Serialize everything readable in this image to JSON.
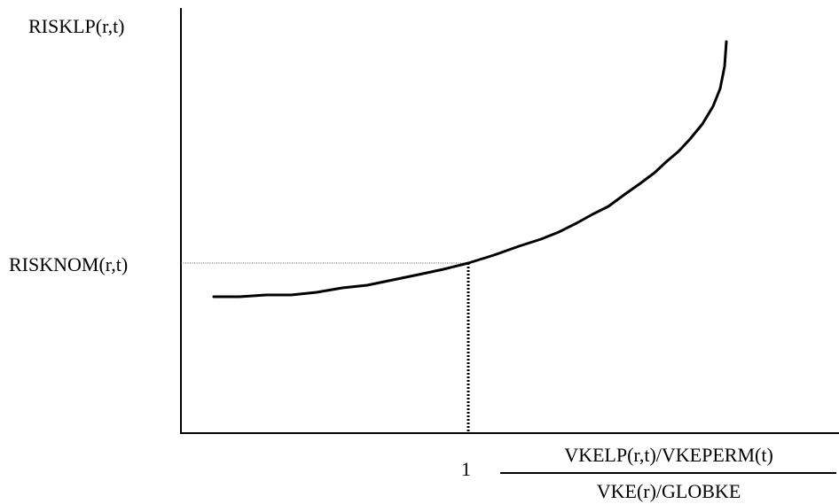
{
  "diagram": {
    "y_axis_label": "RISKLP(r,t)",
    "nominal_level_label": "RISKNOM(r,t)",
    "x_tick_label": "1",
    "x_label_numerator": "VKELP(r,t)/VKEPERM(t)",
    "x_label_denominator": "VKE(r)/GLOBKE"
  },
  "colors": {
    "ink": "#000000",
    "guide": "#555555"
  }
}
